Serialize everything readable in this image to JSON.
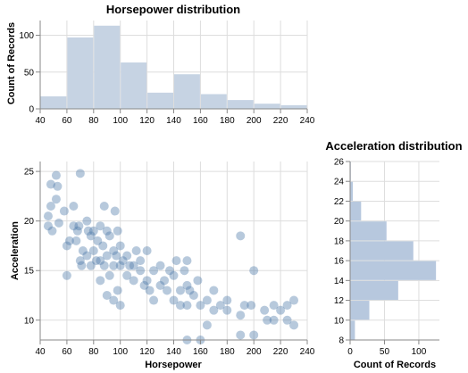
{
  "chart_data": [
    {
      "id": "hp_hist",
      "type": "bar",
      "title": "Horsepower distribution",
      "xlabel": "",
      "ylabel": "Count of Records",
      "xlim": [
        40,
        240
      ],
      "ylim": [
        0,
        120
      ],
      "xticks": [
        40,
        60,
        80,
        100,
        120,
        140,
        160,
        180,
        200,
        220,
        240
      ],
      "yticks": [
        0,
        50,
        100
      ],
      "grid": true,
      "color": "#c6d3e3",
      "bins": [
        [
          40,
          60
        ],
        [
          60,
          80
        ],
        [
          80,
          100
        ],
        [
          100,
          120
        ],
        [
          120,
          140
        ],
        [
          140,
          160
        ],
        [
          160,
          180
        ],
        [
          180,
          200
        ],
        [
          200,
          220
        ],
        [
          220,
          240
        ]
      ],
      "values": [
        17,
        97,
        113,
        63,
        22,
        47,
        20,
        12,
        7,
        5
      ]
    },
    {
      "id": "scatter",
      "type": "scatter",
      "title": "",
      "xlabel": "Horsepower",
      "ylabel": "Acceleration",
      "xlim": [
        40,
        240
      ],
      "ylim": [
        8,
        26
      ],
      "xticks": [
        40,
        60,
        80,
        100,
        120,
        140,
        160,
        180,
        200,
        220,
        240
      ],
      "yticks": [
        10,
        15,
        20,
        25
      ],
      "grid": true,
      "color": "#4c78a8",
      "points": [
        [
          46,
          19.5
        ],
        [
          46,
          20.5
        ],
        [
          48,
          21.5
        ],
        [
          48,
          23.7
        ],
        [
          49,
          19.0
        ],
        [
          52,
          22.2
        ],
        [
          52,
          24.6
        ],
        [
          53,
          23.5
        ],
        [
          54,
          19.8
        ],
        [
          58,
          21.0
        ],
        [
          60,
          17.5
        ],
        [
          62,
          18.0
        ],
        [
          65,
          19.5
        ],
        [
          65,
          21.5
        ],
        [
          67,
          18.0
        ],
        [
          68,
          19.0
        ],
        [
          69,
          19.5
        ],
        [
          70,
          24.8
        ],
        [
          71,
          15.5
        ],
        [
          72,
          17.0
        ],
        [
          75,
          16.5
        ],
        [
          75,
          20.0
        ],
        [
          76,
          19.0
        ],
        [
          78,
          15.5
        ],
        [
          78,
          18.5
        ],
        [
          80,
          19.0
        ],
        [
          80,
          17.0
        ],
        [
          82,
          16.0
        ],
        [
          83,
          18.0
        ],
        [
          85,
          16.0
        ],
        [
          85,
          19.5
        ],
        [
          87,
          17.5
        ],
        [
          88,
          15.5
        ],
        [
          88,
          21.5
        ],
        [
          90,
          16.5
        ],
        [
          90,
          19.0
        ],
        [
          92,
          18.5
        ],
        [
          92,
          14.5
        ],
        [
          95,
          17.0
        ],
        [
          95,
          15.5
        ],
        [
          96,
          21.0
        ],
        [
          97,
          16.5
        ],
        [
          98,
          19.0
        ],
        [
          100,
          17.5
        ],
        [
          100,
          15.5
        ],
        [
          102,
          16.0
        ],
        [
          105,
          16.5
        ],
        [
          105,
          14.5
        ],
        [
          107,
          15.5
        ],
        [
          110,
          14.0
        ],
        [
          110,
          15.5
        ],
        [
          112,
          17.0
        ],
        [
          115,
          15.0
        ],
        [
          115,
          16.0
        ],
        [
          118,
          13.5
        ],
        [
          120,
          14.0
        ],
        [
          120,
          17.0
        ],
        [
          122,
          13.0
        ],
        [
          125,
          15.0
        ],
        [
          125,
          12.0
        ],
        [
          130,
          13.5
        ],
        [
          130,
          15.5
        ],
        [
          133,
          14.0
        ],
        [
          135,
          13.0
        ],
        [
          137,
          15.0
        ],
        [
          140,
          12.0
        ],
        [
          140,
          14.5
        ],
        [
          142,
          16.0
        ],
        [
          145,
          13.0
        ],
        [
          145,
          11.5
        ],
        [
          148,
          15.0
        ],
        [
          150,
          11.5
        ],
        [
          150,
          13.5
        ],
        [
          150,
          16.0
        ],
        [
          152,
          13.0
        ],
        [
          155,
          12.5
        ],
        [
          158,
          14.0
        ],
        [
          160,
          11.5
        ],
        [
          165,
          12.0
        ],
        [
          165,
          9.5
        ],
        [
          170,
          11.0
        ],
        [
          170,
          13.0
        ],
        [
          175,
          11.5
        ],
        [
          180,
          11.0
        ],
        [
          180,
          12.0
        ],
        [
          190,
          18.5
        ],
        [
          190,
          10.5
        ],
        [
          193,
          11.5
        ],
        [
          198,
          11.5
        ],
        [
          200,
          15.0
        ],
        [
          208,
          11.0
        ],
        [
          210,
          10.0
        ],
        [
          215,
          11.5
        ],
        [
          220,
          11.0
        ],
        [
          225,
          10.0
        ],
        [
          225,
          11.5
        ],
        [
          230,
          12.0
        ],
        [
          230,
          9.5
        ],
        [
          150,
          8.0
        ],
        [
          160,
          8.0
        ],
        [
          190,
          8.5
        ],
        [
          200,
          8.5
        ],
        [
          215,
          10.0
        ],
        [
          60,
          14.5
        ],
        [
          70,
          16.0
        ],
        [
          85,
          14.0
        ],
        [
          90,
          12.5
        ],
        [
          95,
          12.0
        ],
        [
          98,
          13.0
        ],
        [
          100,
          11.5
        ]
      ]
    },
    {
      "id": "acc_hist",
      "type": "bar",
      "orientation": "horizontal",
      "title": "Acceleration distribution",
      "xlabel": "Count of Records",
      "ylabel": "",
      "xlim": [
        0,
        130
      ],
      "ylim": [
        8,
        26
      ],
      "xticks": [
        0,
        50,
        100
      ],
      "yticks": [
        8,
        10,
        12,
        14,
        16,
        18,
        20,
        22,
        24,
        26
      ],
      "grid": true,
      "color": "#b7c8de",
      "bins": [
        [
          8,
          10
        ],
        [
          10,
          12
        ],
        [
          12,
          14
        ],
        [
          14,
          16
        ],
        [
          16,
          18
        ],
        [
          18,
          20
        ],
        [
          20,
          22
        ],
        [
          22,
          24
        ],
        [
          24,
          26
        ]
      ],
      "values": [
        7,
        28,
        70,
        125,
        92,
        53,
        16,
        4,
        1
      ]
    }
  ]
}
